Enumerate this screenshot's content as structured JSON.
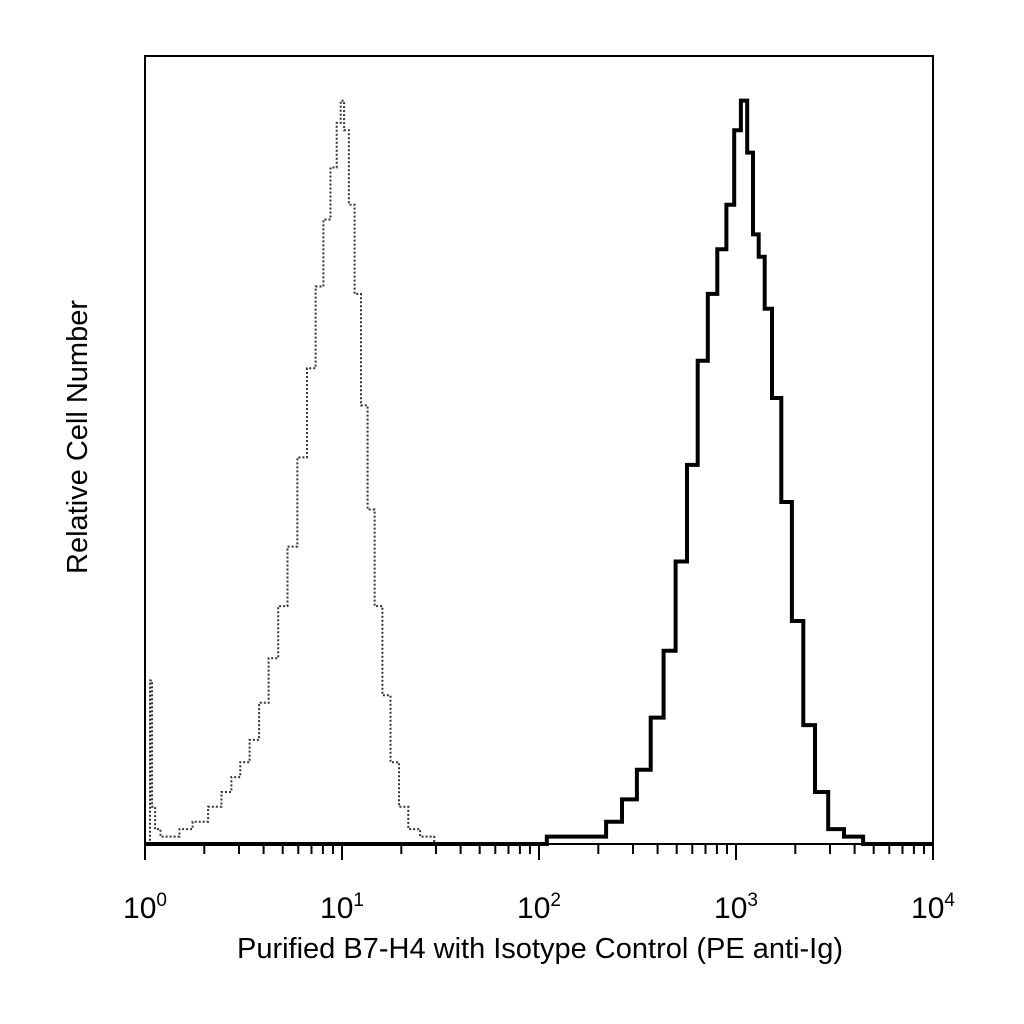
{
  "chart_data": {
    "type": "line",
    "xlabel": "Purified B7-H4 with Isotype Control (PE anti-Ig)",
    "ylabel": "Relative Cell Number",
    "xscale": "log",
    "xlim": [
      1,
      10000
    ],
    "ylim": [
      0,
      1.06
    ],
    "grid": false,
    "legend": "none",
    "x_tick_labels": [
      {
        "base": "10",
        "exp": "0"
      },
      {
        "base": "10",
        "exp": "1"
      },
      {
        "base": "10",
        "exp": "2"
      },
      {
        "base": "10",
        "exp": "3"
      },
      {
        "base": "10",
        "exp": "4"
      }
    ],
    "series": [
      {
        "style": "dotted",
        "color": "#333333",
        "points": [
          [
            1.05,
            0.0
          ],
          [
            1.07,
            0.22
          ],
          [
            1.1,
            0.05
          ],
          [
            1.15,
            0.02
          ],
          [
            1.25,
            0.01
          ],
          [
            1.4,
            0.01
          ],
          [
            1.6,
            0.02
          ],
          [
            1.9,
            0.03
          ],
          [
            2.3,
            0.05
          ],
          [
            2.6,
            0.07
          ],
          [
            2.9,
            0.09
          ],
          [
            3.2,
            0.11
          ],
          [
            3.6,
            0.14
          ],
          [
            4.0,
            0.19
          ],
          [
            4.5,
            0.25
          ],
          [
            5.0,
            0.32
          ],
          [
            5.6,
            0.4
          ],
          [
            6.3,
            0.52
          ],
          [
            7.0,
            0.64
          ],
          [
            7.7,
            0.75
          ],
          [
            8.4,
            0.84
          ],
          [
            9.1,
            0.91
          ],
          [
            9.7,
            0.97
          ],
          [
            10.0,
            1.0
          ],
          [
            10.5,
            0.96
          ],
          [
            11.2,
            0.86
          ],
          [
            12.0,
            0.74
          ],
          [
            13.0,
            0.59
          ],
          [
            14.0,
            0.45
          ],
          [
            15.3,
            0.32
          ],
          [
            16.8,
            0.2
          ],
          [
            18.5,
            0.11
          ],
          [
            20.5,
            0.05
          ],
          [
            23.0,
            0.02
          ],
          [
            27.0,
            0.01
          ],
          [
            32.0,
            0.0
          ]
        ]
      },
      {
        "style": "solid",
        "color": "#000000",
        "points": [
          [
            1.0,
            0.0
          ],
          [
            100.0,
            0.0
          ],
          [
            120.0,
            0.01
          ],
          [
            160.0,
            0.01
          ],
          [
            200.0,
            0.01
          ],
          [
            240.0,
            0.03
          ],
          [
            290.0,
            0.06
          ],
          [
            340.0,
            0.1
          ],
          [
            400.0,
            0.17
          ],
          [
            460.0,
            0.26
          ],
          [
            530.0,
            0.38
          ],
          [
            600.0,
            0.51
          ],
          [
            680.0,
            0.65
          ],
          [
            760.0,
            0.74
          ],
          [
            850.0,
            0.8
          ],
          [
            940.0,
            0.86
          ],
          [
            1020.0,
            0.96
          ],
          [
            1100.0,
            1.0
          ],
          [
            1180.0,
            0.93
          ],
          [
            1260.0,
            0.82
          ],
          [
            1350.0,
            0.79
          ],
          [
            1450.0,
            0.72
          ],
          [
            1600.0,
            0.6
          ],
          [
            1800.0,
            0.46
          ],
          [
            2050.0,
            0.3
          ],
          [
            2350.0,
            0.16
          ],
          [
            2700.0,
            0.07
          ],
          [
            3200.0,
            0.02
          ],
          [
            3900.0,
            0.01
          ],
          [
            5000.0,
            0.0
          ],
          [
            10000.0,
            0.0
          ]
        ]
      }
    ]
  }
}
